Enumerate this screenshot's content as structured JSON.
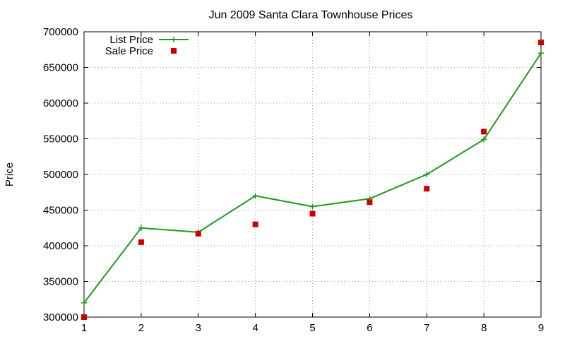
{
  "chart_data": {
    "type": "line",
    "title": "Jun 2009 Santa Clara Townhouse Prices",
    "xlabel": "",
    "ylabel": "Price",
    "x": [
      1,
      2,
      3,
      4,
      5,
      6,
      7,
      8,
      9
    ],
    "xlim": [
      1,
      9
    ],
    "ylim": [
      300000,
      700000
    ],
    "x_ticks": [
      1,
      2,
      3,
      4,
      5,
      6,
      7,
      8,
      9
    ],
    "y_ticks": [
      300000,
      350000,
      400000,
      450000,
      500000,
      550000,
      600000,
      650000,
      700000
    ],
    "grid": true,
    "legend_position": "top-left",
    "series": [
      {
        "name": "List Price",
        "style": "line with plus markers",
        "color": "#1e9b1e",
        "values": [
          320000,
          425000,
          419000,
          470000,
          455000,
          466000,
          500000,
          549000,
          670000
        ]
      },
      {
        "name": "Sale Price",
        "style": "square points",
        "color": "#cc0000",
        "values": [
          300000,
          405000,
          417000,
          430000,
          445000,
          461000,
          480000,
          560000,
          685000
        ]
      }
    ]
  }
}
